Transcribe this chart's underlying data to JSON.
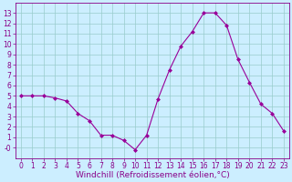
{
  "hours": [
    0,
    1,
    2,
    3,
    4,
    5,
    6,
    7,
    8,
    9,
    10,
    11,
    12,
    13,
    14,
    15,
    16,
    17,
    18,
    19,
    20,
    21,
    22,
    23
  ],
  "values": [
    5.0,
    5.0,
    5.0,
    4.8,
    4.5,
    3.3,
    2.6,
    1.2,
    1.2,
    0.7,
    -0.2,
    1.2,
    4.7,
    7.5,
    9.8,
    11.2,
    13.0,
    13.0,
    11.8,
    8.5,
    6.3,
    4.2,
    3.3,
    1.6
  ],
  "line_color": "#990099",
  "marker": "D",
  "marker_size": 2.0,
  "bg_color": "#cceeff",
  "grid_color": "#99cccc",
  "xlabel": "Windchill (Refroidissement éolien,°C)",
  "ylim": [
    -1,
    14
  ],
  "xlim": [
    -0.5,
    23.5
  ],
  "yticks": [
    0,
    1,
    2,
    3,
    4,
    5,
    6,
    7,
    8,
    9,
    10,
    11,
    12,
    13
  ],
  "ytick_labels": [
    "-0",
    "1",
    "2",
    "3",
    "4",
    "5",
    "6",
    "7",
    "8",
    "9",
    "10",
    "11",
    "12",
    "13"
  ],
  "xticks": [
    0,
    1,
    2,
    3,
    4,
    5,
    6,
    7,
    8,
    9,
    10,
    11,
    12,
    13,
    14,
    15,
    16,
    17,
    18,
    19,
    20,
    21,
    22,
    23
  ],
  "tick_label_fontsize": 5.5,
  "xlabel_fontsize": 6.5,
  "axis_label_color": "#880088",
  "spine_color": "#880088",
  "linewidth": 0.8
}
